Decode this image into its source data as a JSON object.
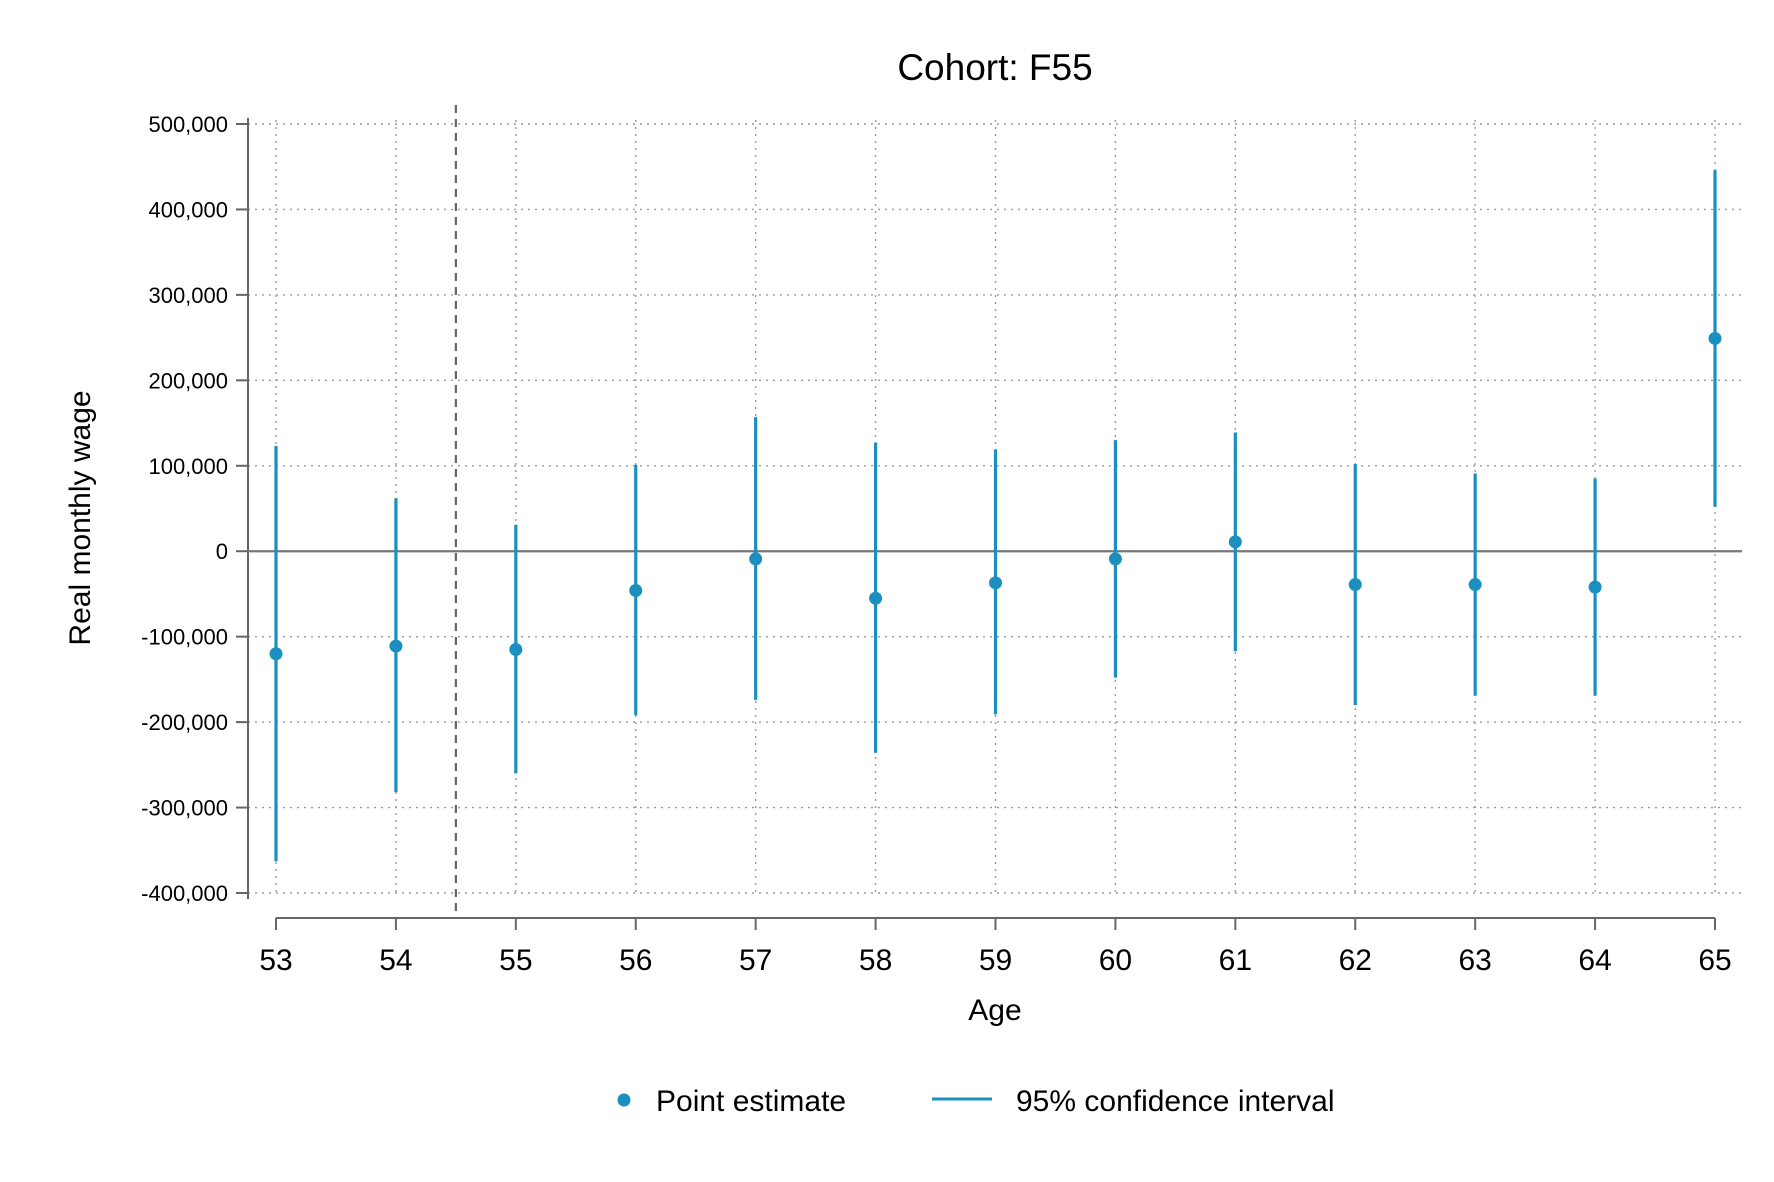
{
  "chart_data": {
    "type": "scatter",
    "title": "Cohort: F55",
    "xlabel": "Age",
    "ylabel": "Real monthly wage",
    "x": [
      53,
      54,
      55,
      56,
      57,
      58,
      59,
      60,
      61,
      62,
      63,
      64,
      65
    ],
    "xlim": [
      53,
      65
    ],
    "ylim": [
      -400000,
      500000
    ],
    "y_ticks": [
      -400000,
      -300000,
      -200000,
      -100000,
      0,
      100000,
      200000,
      300000,
      400000,
      500000
    ],
    "y_tick_labels": [
      "-400,000",
      "-300,000",
      "-200,000",
      "-100,000",
      "0",
      "100,000",
      "200,000",
      "300,000",
      "400,000",
      "500,000"
    ],
    "x_tick_labels": [
      "53",
      "54",
      "55",
      "56",
      "57",
      "58",
      "59",
      "60",
      "61",
      "62",
      "63",
      "64",
      "65"
    ],
    "reference_line_x": 54.5,
    "zero_line_y": 0,
    "grid": true,
    "legend_position": "bottom",
    "color": "#1a8fc0",
    "series": [
      {
        "name": "Point estimate",
        "kind": "point",
        "values": [
          -120000,
          -111000,
          -115000,
          -46000,
          -9000,
          -55000,
          -37000,
          -9000,
          11000,
          -39000,
          -39000,
          -42000,
          249000
        ]
      },
      {
        "name": "95% confidence interval",
        "kind": "interval",
        "lower": [
          -363000,
          -282000,
          -260000,
          -192000,
          -174000,
          -236000,
          -191000,
          -148000,
          -117000,
          -180000,
          -169000,
          -169000,
          52000
        ],
        "upper": [
          123000,
          62000,
          31000,
          101000,
          157000,
          127000,
          119000,
          130000,
          139000,
          102000,
          91000,
          85000,
          446000
        ]
      }
    ]
  }
}
